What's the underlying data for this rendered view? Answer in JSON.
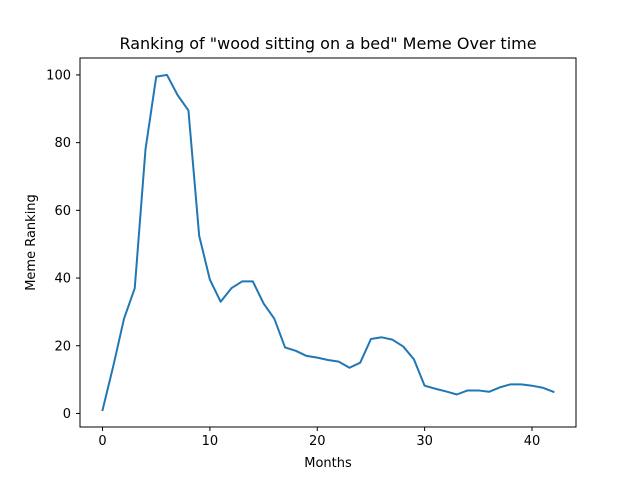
{
  "chart_data": {
    "type": "line",
    "title": "Ranking of \"wood sitting on a bed\" Meme Over time",
    "xlabel": "Months",
    "ylabel": "Meme Ranking",
    "xlim": [
      -2.1,
      44.1
    ],
    "ylim": [
      -4,
      105
    ],
    "xticks": [
      0,
      10,
      20,
      30,
      40
    ],
    "yticks": [
      0,
      20,
      40,
      60,
      80,
      100
    ],
    "grid": false,
    "series": [
      {
        "color": "#1f77b4",
        "x": [
          0,
          1,
          2,
          3,
          4,
          5,
          6,
          7,
          8,
          9,
          10,
          11,
          12,
          13,
          14,
          15,
          16,
          17,
          18,
          19,
          20,
          21,
          22,
          23,
          24,
          25,
          26,
          27,
          28,
          29,
          30,
          31,
          32,
          33,
          34,
          35,
          36,
          37,
          38,
          39,
          40,
          41,
          42
        ],
        "values": [
          1,
          14,
          28,
          37,
          78,
          99.5,
          100,
          94,
          89.5,
          52.5,
          39.5,
          33,
          37,
          39,
          39,
          32.5,
          28,
          19.5,
          18.5,
          17,
          16.5,
          15.8,
          15.3,
          13.5,
          15,
          22,
          22.5,
          21.8,
          19.8,
          16,
          8.2,
          7.3,
          6.5,
          5.6,
          6.8,
          6.8,
          6.4,
          7.7,
          8.6,
          8.6,
          8.2,
          7.6,
          6.4
        ]
      }
    ]
  }
}
